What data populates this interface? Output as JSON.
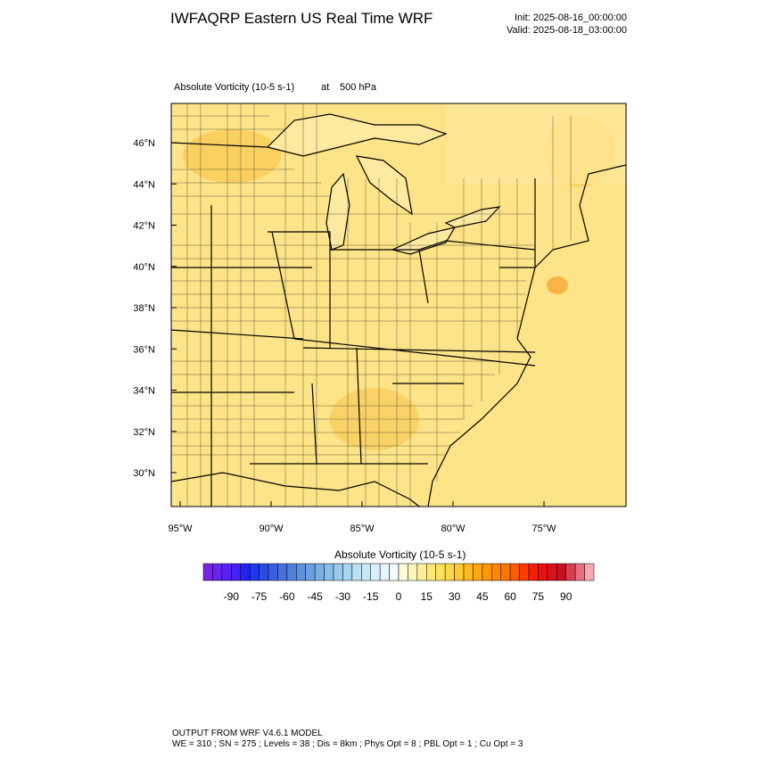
{
  "header": {
    "title": "IWFAQRP Eastern US Real Time WRF",
    "init": "Init: 2025-08-16_00:00:00",
    "valid": "Valid: 2025-08-18_03:00:00"
  },
  "plot": {
    "field": "Absolute Vorticity   (10-5 s-1)",
    "at": "at",
    "level": "500 hPa",
    "lat_labels": [
      "46°N",
      "44°N",
      "42°N",
      "40°N",
      "38°N",
      "36°N",
      "34°N",
      "32°N",
      "30°N"
    ],
    "lon_labels": [
      "95°W",
      "90°W",
      "85°W",
      "80°W",
      "75°W"
    ]
  },
  "colorbar": {
    "title": "Absolute Vorticity  (10-5 s-1)",
    "labels": [
      "-90",
      "-75",
      "-60",
      "-45",
      "-30",
      "-15",
      "0",
      "15",
      "30",
      "45",
      "60",
      "75",
      "90"
    ],
    "colors": [
      "#7b22e8",
      "#6a22ee",
      "#5a22f2",
      "#4222f5",
      "#2222f5",
      "#1d36f0",
      "#2a4ce6",
      "#3a5fe0",
      "#4670dc",
      "#4f80dc",
      "#5a90dc",
      "#68a0e0",
      "#78b0e6",
      "#88bfea",
      "#98cbee",
      "#a8d6f1",
      "#b8e0f4",
      "#c8e8f7",
      "#d8f0fa",
      "#e8f6fc",
      "#f4fbfe",
      "#fffbd8",
      "#fff5b8",
      "#ffef98",
      "#ffe878",
      "#ffe060",
      "#ffd648",
      "#ffc830",
      "#ffb820",
      "#ffa810",
      "#ff9800",
      "#ff8800",
      "#ff7400",
      "#ff5c00",
      "#ff3c00",
      "#f82000",
      "#e81010",
      "#d81018",
      "#c81020",
      "#d84050",
      "#e87080",
      "#f8a8b0"
    ]
  },
  "footer": {
    "line1": "OUTPUT FROM WRF V4.6.1 MODEL",
    "line2": "WE = 310 ; SN = 275 ; Levels = 38 ; Dis = 8km ; Phys Opt = 8 ; PBL Opt = 1 ; Cu Opt = 3"
  }
}
